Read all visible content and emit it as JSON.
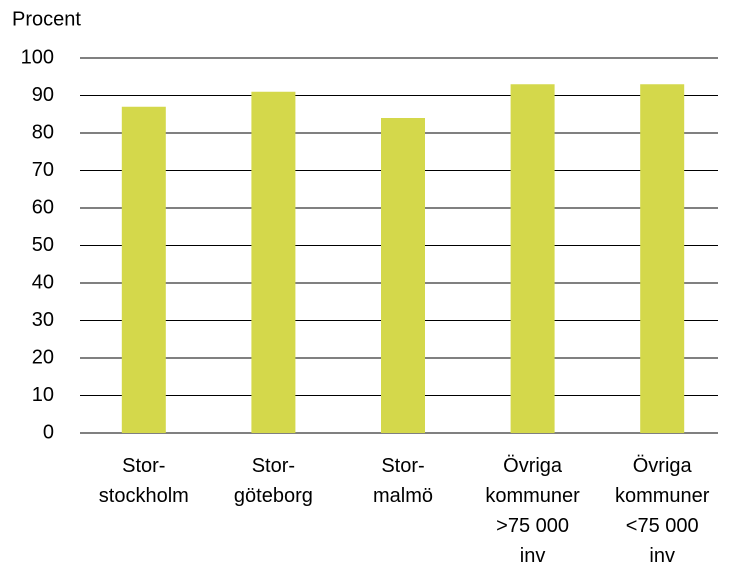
{
  "chart_data": {
    "type": "bar",
    "y_label": "Procent",
    "categories": [
      "Stor-\nstockholm",
      "Stor-\ngöteborg",
      "Stor-\nmalmö",
      "Övriga\nkommuner\n>75 000\ninv",
      "Övriga\nkommuner\n<75 000\ninv"
    ],
    "values": [
      87,
      91,
      84,
      93,
      93
    ],
    "color": "#d4d84b",
    "ylim": [
      0,
      100
    ],
    "yticks": [
      0,
      10,
      20,
      30,
      40,
      50,
      60,
      70,
      80,
      90,
      100
    ],
    "grid": true
  }
}
